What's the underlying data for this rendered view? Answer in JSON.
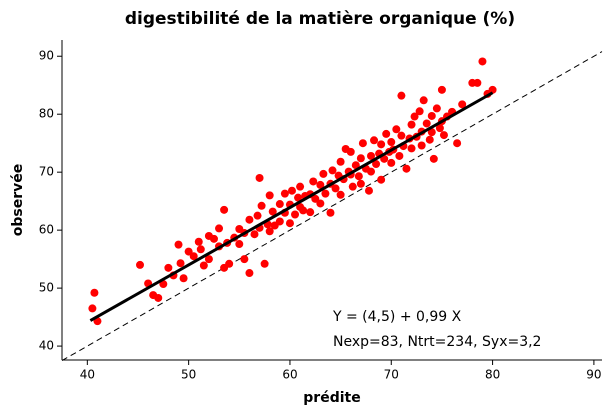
{
  "chart_data": {
    "type": "scatter",
    "title": "digestibilité de la matière organique (%)",
    "x_label": "prédite",
    "y_label": "observée",
    "annotations": [
      "Y = (4,5) + 0,99 X",
      "Nexp=83, Ntrt=234, Syx=3,2"
    ],
    "xlim": [
      37.5,
      90.8
    ],
    "ylim": [
      37.6,
      92.8
    ],
    "xticks": [
      40,
      50,
      60,
      70,
      80,
      90
    ],
    "yticks": [
      40,
      50,
      60,
      70,
      80,
      90
    ],
    "color": "#ff0000",
    "fit_line": {
      "color": "#000000",
      "x": [
        40.3,
        80
      ],
      "y": [
        44.4,
        83.7
      ]
    },
    "identity_line": {
      "color": "#000000",
      "x": [
        37.5,
        90.8
      ],
      "y": [
        37.5,
        90.8
      ]
    },
    "x": [
      40.5,
      40.7,
      41,
      45.2,
      46,
      46.5,
      47,
      47.5,
      48,
      48.5,
      49,
      49.2,
      49.5,
      50,
      50.5,
      51,
      51.2,
      51.5,
      52,
      52,
      52.5,
      53,
      53,
      53.5,
      53.5,
      53.8,
      54,
      54.5,
      55,
      55,
      55.5,
      55.5,
      56,
      56,
      56.5,
      56.8,
      57,
      57,
      57.2,
      57.5,
      57.8,
      58,
      58,
      58.3,
      58.5,
      59,
      59,
      59.5,
      59.5,
      60,
      60,
      60.2,
      60.5,
      60.8,
      61,
      61,
      61.3,
      61.5,
      62,
      62,
      62.3,
      62.5,
      63,
      63,
      63.3,
      63.5,
      64,
      64,
      64.2,
      64.5,
      64.8,
      65,
      65,
      65.3,
      65.5,
      65.8,
      66,
      66,
      66.2,
      66.5,
      66.8,
      67,
      67,
      67.2,
      67.5,
      67.8,
      68,
      68,
      68.3,
      68.5,
      68.8,
      69,
      69,
      69.3,
      69.5,
      69.8,
      70,
      70,
      70.2,
      70.5,
      70.8,
      71,
      71,
      71.2,
      71.5,
      71.8,
      72,
      72,
      72.3,
      72.5,
      72.8,
      73,
      73,
      73.2,
      73.5,
      73.8,
      74,
      74,
      74.2,
      74.5,
      74.8,
      75,
      75,
      75.2,
      75.5,
      76,
      76.5,
      77,
      78,
      78.5,
      79,
      79.5,
      80
    ],
    "y": [
      46.5,
      49.2,
      44.3,
      54,
      50.8,
      48.8,
      48.3,
      50.7,
      53.5,
      52.2,
      57.5,
      54.3,
      51.7,
      56.3,
      55.5,
      58,
      56.7,
      53.9,
      55,
      59,
      58.5,
      57.2,
      60.3,
      53.5,
      63.5,
      57.8,
      54.2,
      58.7,
      60.2,
      57.6,
      59.5,
      55,
      52.6,
      61.8,
      59.3,
      62.5,
      69,
      60.4,
      64.2,
      54.2,
      61,
      66,
      59.8,
      63.2,
      60.8,
      64.5,
      61.5,
      63,
      66.3,
      64.4,
      61.2,
      66.8,
      62.7,
      65.6,
      64,
      67.5,
      63.4,
      65.9,
      66.2,
      63.1,
      68.4,
      65.4,
      67.8,
      64.6,
      69.7,
      66.3,
      68,
      63,
      70.3,
      67.2,
      69.4,
      71.8,
      66.1,
      68.8,
      74,
      70.1,
      69.6,
      73.5,
      67.5,
      71.2,
      69.3,
      72.4,
      68,
      75,
      70.6,
      66.8,
      72.8,
      70.1,
      75.5,
      71.4,
      73.2,
      74.8,
      68.7,
      72.3,
      76.6,
      73.5,
      71.6,
      75.2,
      73.9,
      77.4,
      72.8,
      76.3,
      83.2,
      74.5,
      70.6,
      75.8,
      78.2,
      74.1,
      79.6,
      76.1,
      80.5,
      77,
      74.6,
      82.4,
      78.4,
      75.6,
      79.7,
      76.9,
      72.3,
      81,
      77.6,
      78.8,
      84.2,
      76.4,
      79.6,
      80.4,
      75,
      81.7,
      85.4,
      85.4,
      89.1,
      83.5,
      84.2
    ]
  }
}
